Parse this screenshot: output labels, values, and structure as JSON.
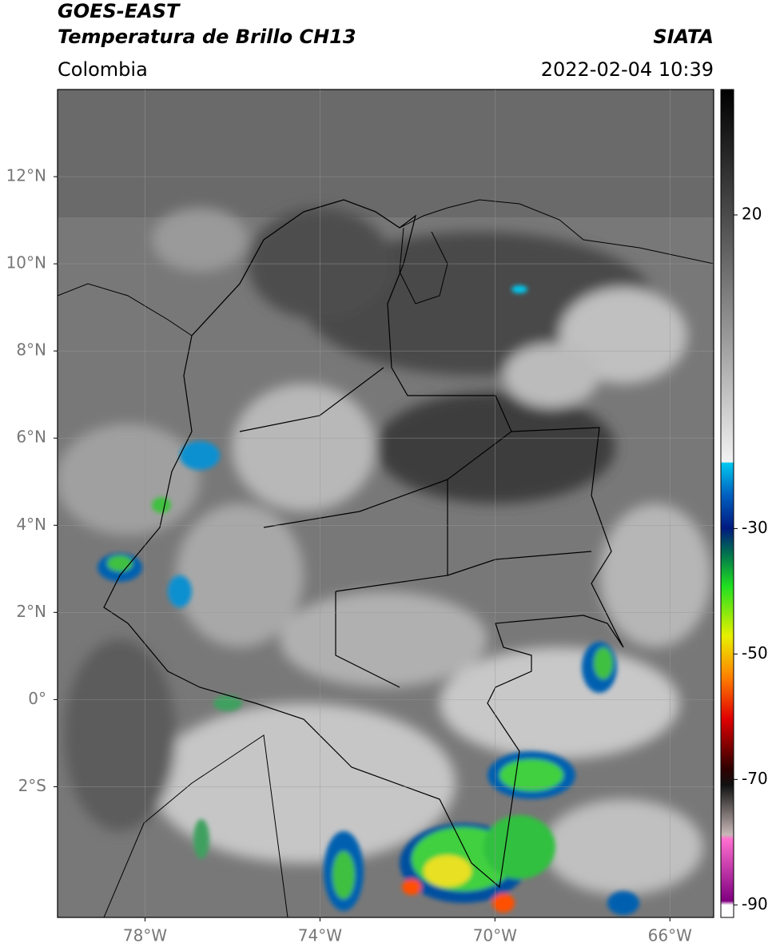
{
  "header": {
    "satellite": "GOES-EAST",
    "product": "Temperatura de Brillo CH13",
    "source": "SIATA",
    "region": "Colombia",
    "datetime": "2022-02-04 10:39"
  },
  "map": {
    "lon_range": [
      -80,
      -65
    ],
    "lat_range": [
      -5,
      14
    ],
    "lat_ticks": [
      {
        "value": 12,
        "label": "12°N"
      },
      {
        "value": 10,
        "label": "10°N"
      },
      {
        "value": 8,
        "label": "8°N"
      },
      {
        "value": 6,
        "label": "6°N"
      },
      {
        "value": 4,
        "label": "4°N"
      },
      {
        "value": 2,
        "label": "2°N"
      },
      {
        "value": 0,
        "label": "0°"
      },
      {
        "value": -2,
        "label": "2°S"
      }
    ],
    "lon_ticks": [
      {
        "value": -78,
        "label": "78°W"
      },
      {
        "value": -74,
        "label": "74°W"
      },
      {
        "value": -70,
        "label": "70°W"
      },
      {
        "value": -66,
        "label": "66°W"
      }
    ]
  },
  "colorbar": {
    "range": [
      -92,
      40
    ],
    "ticks": [
      20,
      -30,
      -50,
      -70,
      -90
    ]
  }
}
